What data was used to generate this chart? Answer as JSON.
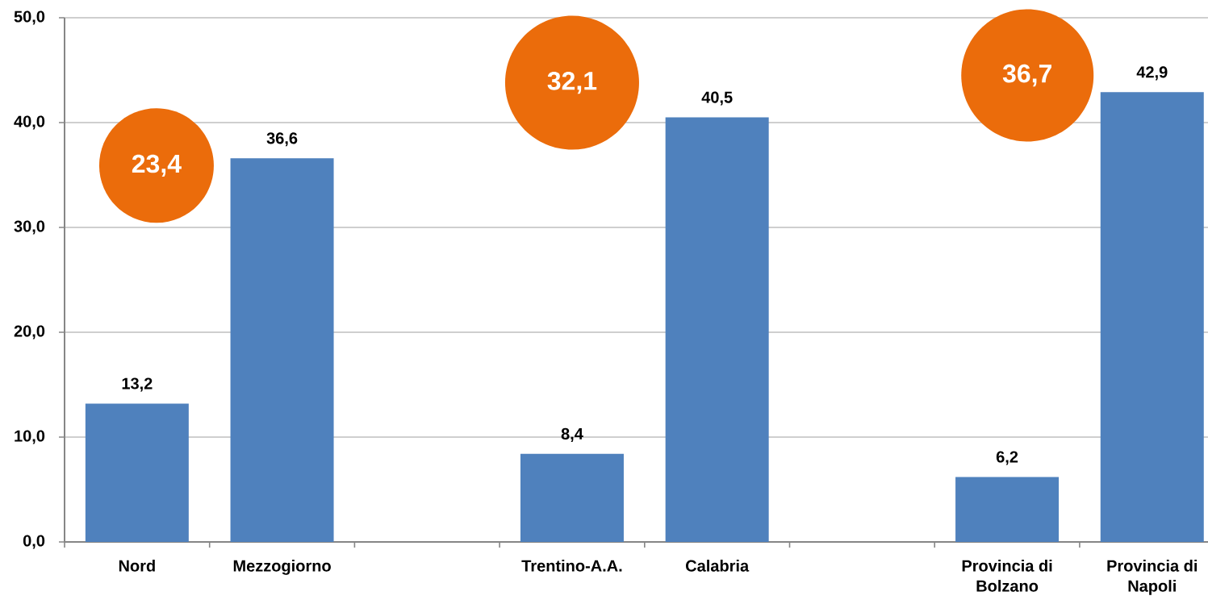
{
  "chart_data": {
    "type": "bar",
    "categories": [
      "Nord",
      "Mezzogiorno",
      null,
      "Trentino-A.A.",
      "Calabria",
      null,
      "Provincia di Bolzano",
      "Provincia di Napoli"
    ],
    "values": [
      13.2,
      36.6,
      null,
      8.4,
      40.5,
      null,
      6.2,
      42.9
    ],
    "value_labels": [
      "13,2",
      "36,6",
      null,
      "8,4",
      "40,5",
      null,
      "6,2",
      "42,9"
    ],
    "color": "#4f81bd",
    "ylim": [
      0,
      50
    ],
    "yticks": [
      {
        "value": 0,
        "label": "0,0"
      },
      {
        "value": 10,
        "label": "10,0"
      },
      {
        "value": 20,
        "label": "20,0"
      },
      {
        "value": 30,
        "label": "30,0"
      },
      {
        "value": 40,
        "label": "40,0"
      },
      {
        "value": 50,
        "label": "50,0"
      }
    ],
    "grid": "y",
    "annotations": [
      "23,4",
      "32,1",
      "36,7"
    ]
  }
}
